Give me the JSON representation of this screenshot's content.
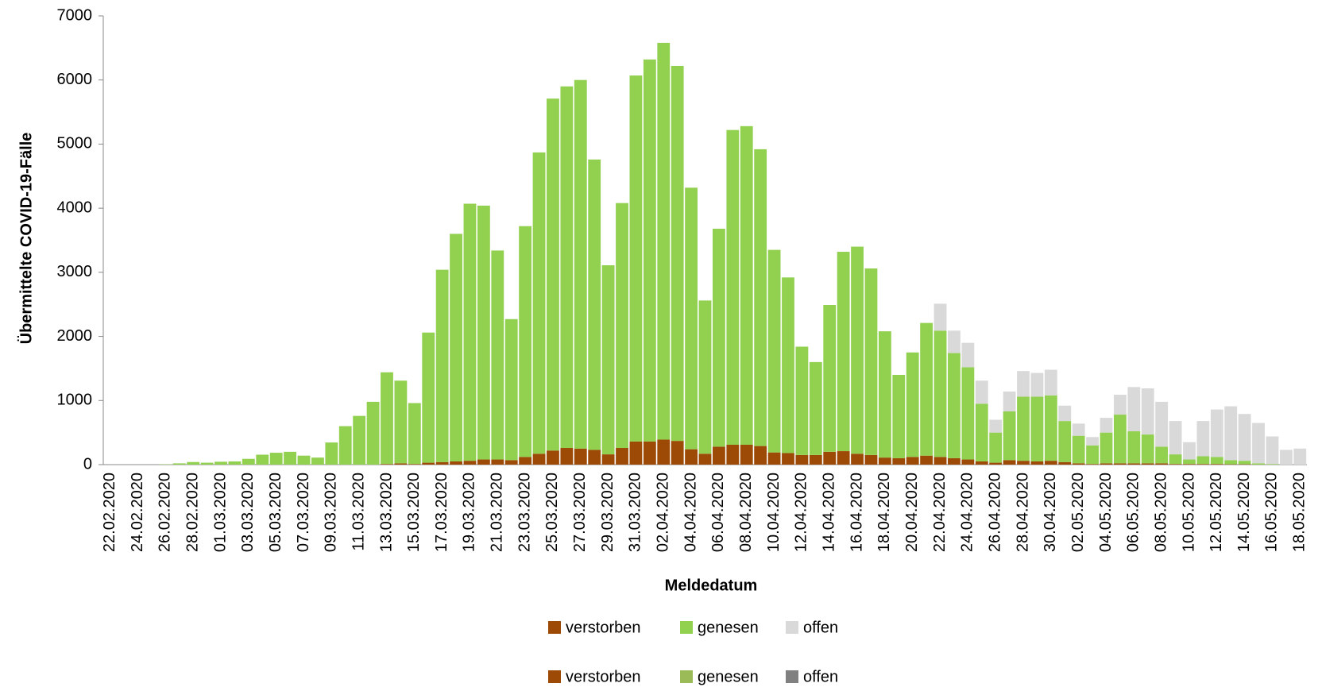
{
  "chart_data": {
    "type": "stacked_bar",
    "x_label": "Meldedatum",
    "y_label": "Übermittelte COVID-19-Fälle",
    "categories": [
      "22.02.2020",
      null,
      "24.02.2020",
      null,
      "26.02.2020",
      null,
      "28.02.2020",
      null,
      "01.03.2020",
      null,
      "03.03.2020",
      null,
      "05.03.2020",
      null,
      "07.03.2020",
      null,
      "09.03.2020",
      null,
      "11.03.2020",
      null,
      "13.03.2020",
      null,
      "15.03.2020",
      null,
      "17.03.2020",
      null,
      "19.03.2020",
      null,
      "21.03.2020",
      null,
      "23.03.2020",
      null,
      "25.03.2020",
      null,
      "27.03.2020",
      null,
      "29.03.2020",
      null,
      "31.03.2020",
      null,
      "02.04.2020",
      null,
      "04.04.2020",
      null,
      "06.04.2020",
      null,
      "08.04.2020",
      null,
      "10.04.2020",
      null,
      "12.04.2020",
      null,
      "14.04.2020",
      null,
      "16.04.2020",
      null,
      "18.04.2020",
      null,
      "20.04.2020",
      null,
      "22.04.2020",
      null,
      "24.04.2020",
      null,
      "26.04.2020",
      null,
      "28.04.2020",
      null,
      "30.04.2020",
      null,
      "02.05.2020",
      null,
      "04.05.2020",
      null,
      "06.05.2020",
      null,
      "08.05.2020",
      null,
      "10.05.2020",
      null,
      "12.05.2020",
      null,
      "14.05.2020",
      null,
      "16.05.2020",
      null,
      "18.05.2020"
    ],
    "series": [
      {
        "name": "verstorben",
        "color": "#9c4a06",
        "values": [
          0,
          0,
          0,
          0,
          0,
          0,
          0,
          0,
          0,
          0,
          0,
          0,
          0,
          0,
          0,
          0,
          0,
          0,
          0,
          0,
          10,
          20,
          10,
          30,
          40,
          50,
          60,
          80,
          80,
          70,
          120,
          170,
          220,
          260,
          250,
          230,
          160,
          260,
          360,
          360,
          390,
          370,
          240,
          170,
          280,
          310,
          310,
          290,
          190,
          180,
          150,
          150,
          200,
          210,
          170,
          150,
          110,
          100,
          120,
          140,
          120,
          100,
          80,
          50,
          30,
          70,
          60,
          50,
          60,
          40,
          20,
          10,
          20,
          20,
          20,
          20,
          20,
          10,
          10,
          10,
          10,
          5,
          5,
          0,
          0,
          0,
          0
        ]
      },
      {
        "name": "genesen",
        "color": "#92d050",
        "values": [
          0,
          0,
          0,
          0,
          5,
          20,
          40,
          30,
          45,
          50,
          90,
          155,
          185,
          200,
          140,
          110,
          345,
          600,
          760,
          980,
          1430,
          1290,
          950,
          2030,
          3000,
          3550,
          4010,
          3960,
          3260,
          2200,
          3600,
          4700,
          5490,
          5640,
          5750,
          4530,
          2950,
          3820,
          5710,
          5960,
          6190,
          5850,
          4080,
          2390,
          3400,
          4910,
          4970,
          4630,
          3160,
          2740,
          1690,
          1450,
          2290,
          3110,
          3230,
          2910,
          1970,
          1300,
          1630,
          2070,
          1970,
          1640,
          1440,
          900,
          470,
          760,
          1000,
          1010,
          1020,
          640,
          430,
          290,
          480,
          760,
          500,
          450,
          260,
          150,
          70,
          120,
          110,
          65,
          55,
          20,
          10,
          0,
          0
        ]
      },
      {
        "name": "offen",
        "color": "#d9d9d9",
        "values": [
          0,
          0,
          0,
          0,
          0,
          0,
          0,
          0,
          0,
          0,
          0,
          0,
          0,
          0,
          0,
          0,
          0,
          0,
          0,
          0,
          0,
          0,
          0,
          0,
          0,
          0,
          0,
          0,
          0,
          0,
          0,
          0,
          0,
          0,
          0,
          0,
          0,
          0,
          0,
          0,
          0,
          0,
          0,
          0,
          0,
          0,
          0,
          0,
          0,
          0,
          0,
          0,
          0,
          0,
          0,
          0,
          0,
          0,
          0,
          0,
          420,
          350,
          380,
          360,
          200,
          310,
          400,
          370,
          400,
          240,
          190,
          130,
          230,
          310,
          690,
          720,
          700,
          520,
          270,
          550,
          740,
          840,
          730,
          630,
          430,
          230,
          250
        ]
      }
    ],
    "extra_legend": [
      {
        "name": "verstorben",
        "color": "#9c4a06"
      },
      {
        "name": "genesen",
        "color": "#9bbb59"
      },
      {
        "name": "offen",
        "color": "#808080"
      }
    ],
    "ylim": [
      0,
      7000
    ],
    "yticks": [
      0,
      1000,
      2000,
      3000,
      4000,
      5000,
      6000,
      7000
    ],
    "legend": "bottom",
    "grid": false
  }
}
